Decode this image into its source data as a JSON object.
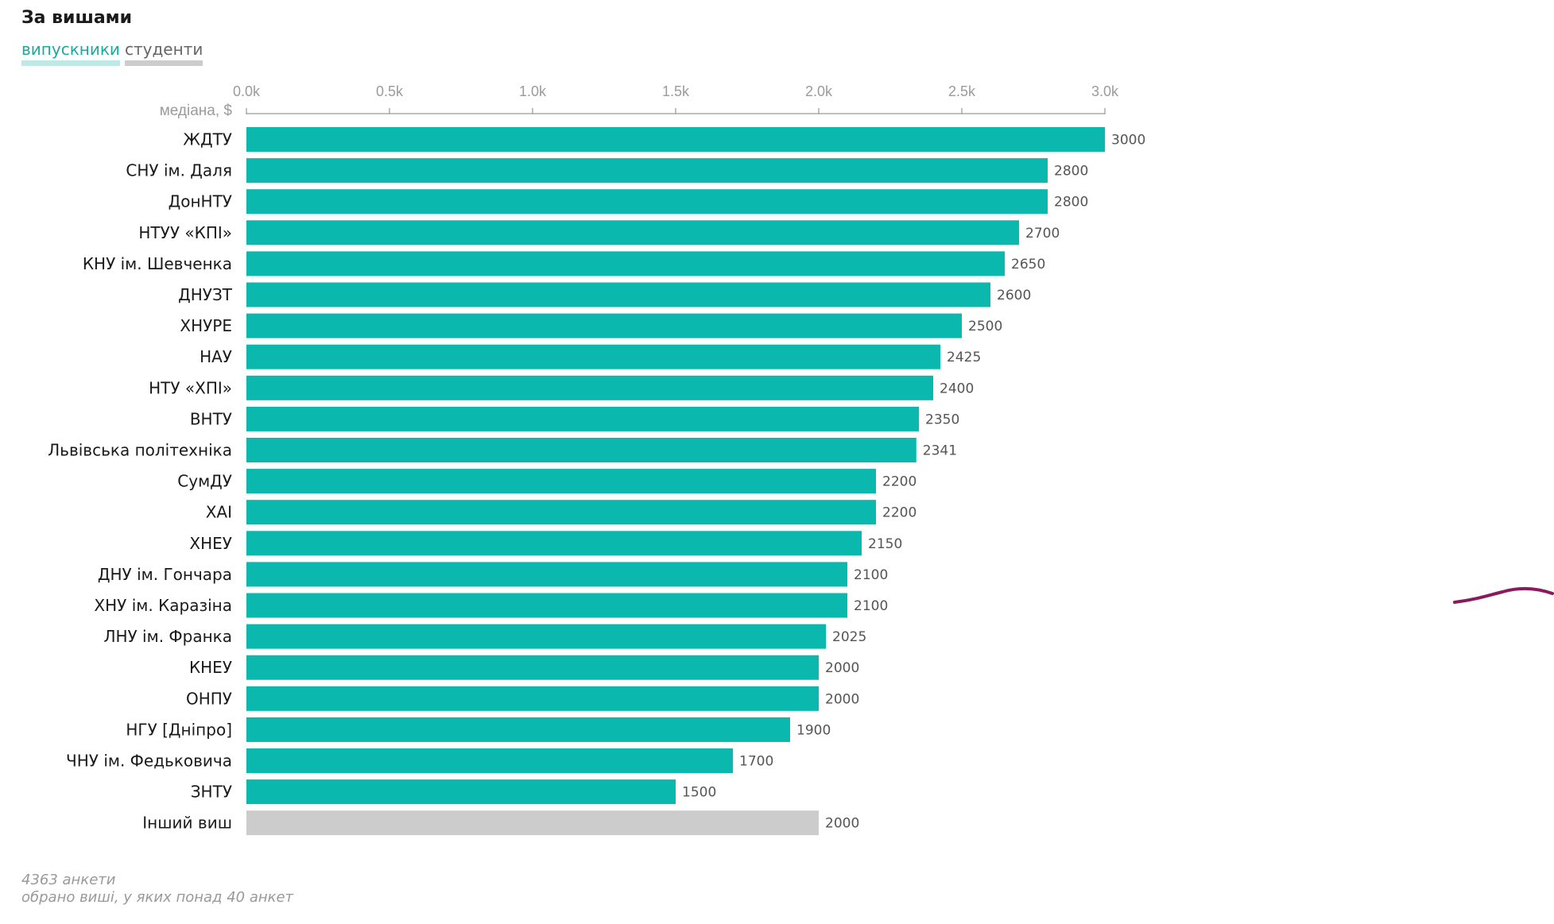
{
  "header": {
    "title": "За вишами",
    "tabs": [
      {
        "label": "випускники",
        "active": true
      },
      {
        "label": "студенти",
        "active": false
      }
    ]
  },
  "chart_data": {
    "type": "bar",
    "orientation": "horizontal",
    "title": "За вишами",
    "ylabel": "медіана, $",
    "xlim": [
      0,
      3000
    ],
    "ticks": [
      0,
      500,
      1000,
      1500,
      2000,
      2500,
      3000
    ],
    "tick_labels": [
      "0.0k",
      "0.5k",
      "1.0k",
      "1.5k",
      "2.0k",
      "2.5k",
      "3.0k"
    ],
    "categories": [
      "ЖДТУ",
      "СНУ ім. Даля",
      "ДонНТУ",
      "НТУУ «КПІ»",
      "КНУ ім. Шевченка",
      "ДНУЗТ",
      "ХНУРЕ",
      "НАУ",
      "НТУ «ХПІ»",
      "ВНТУ",
      "Львівська політехніка",
      "СумДУ",
      "ХАІ",
      "ХНЕУ",
      "ДНУ ім. Гончара",
      "ХНУ ім. Каразіна",
      "ЛНУ ім. Франка",
      "КНЕУ",
      "ОНПУ",
      "НГУ [Дніпро]",
      "ЧНУ ім. Федьковича",
      "ЗНТУ",
      "Інший виш"
    ],
    "values": [
      3000,
      2800,
      2800,
      2700,
      2650,
      2600,
      2500,
      2425,
      2400,
      2350,
      2341,
      2200,
      2200,
      2150,
      2100,
      2100,
      2025,
      2000,
      2000,
      1900,
      1700,
      1500,
      2000
    ],
    "highlight_other_index": 22,
    "colors": {
      "bar": "#0bb8ad",
      "other": "#cccccc",
      "axis": "#aaaaaa",
      "annotation": "#8b1a5c"
    }
  },
  "footer": {
    "note1": "4363 анкети",
    "note2": "обрано виші, у яких понад 40 анкет"
  }
}
